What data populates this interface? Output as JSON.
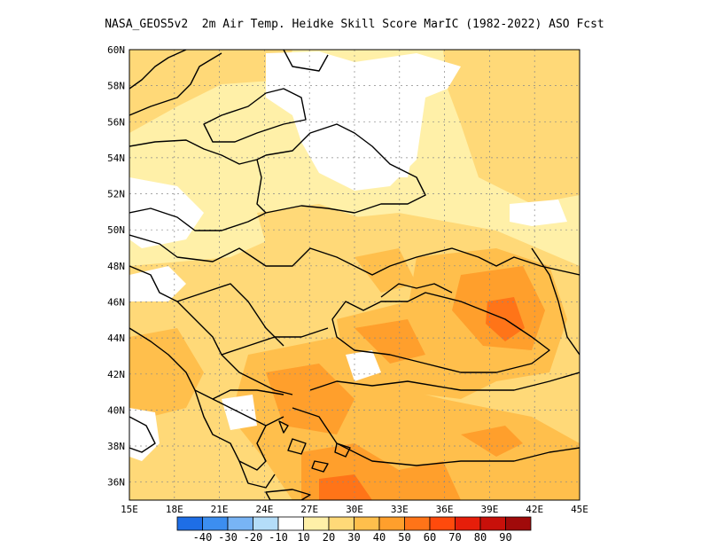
{
  "title": "NASA_GEOS5v2  2m Air Temp. Heidke Skill Score MarIC (1982-2022) ASO Fcst",
  "map": {
    "lon_range": [
      15,
      45
    ],
    "lat_range": [
      35,
      60
    ],
    "lat_ticks": [
      "60N",
      "58N",
      "56N",
      "54N",
      "52N",
      "50N",
      "48N",
      "46N",
      "44N",
      "42N",
      "40N",
      "38N",
      "36N"
    ],
    "lon_ticks": [
      "15E",
      "18E",
      "21E",
      "24E",
      "27E",
      "30E",
      "33E",
      "36E",
      "39E",
      "42E",
      "45E"
    ]
  },
  "colorbar": {
    "colors": [
      "#1e6ee6",
      "#3c8ef0",
      "#78b4f5",
      "#b4ddf9",
      "#ffffff",
      "#fff0a8",
      "#ffd978",
      "#ffbf4c",
      "#ff9f2c",
      "#ff7418",
      "#ff4a0c",
      "#e61e0a",
      "#c8100a",
      "#a00a0a"
    ],
    "labels": [
      "-40",
      "-30",
      "-20",
      "-10",
      "10",
      "20",
      "30",
      "40",
      "50",
      "60",
      "70",
      "80",
      "90"
    ]
  }
}
